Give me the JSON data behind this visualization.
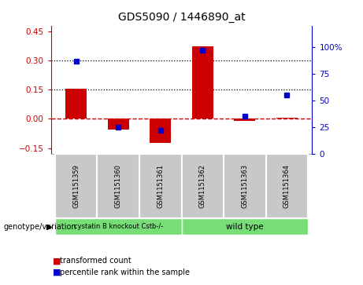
{
  "title": "GDS5090 / 1446890_at",
  "samples": [
    "GSM1151359",
    "GSM1151360",
    "GSM1151361",
    "GSM1151362",
    "GSM1151363",
    "GSM1151364"
  ],
  "bar_values": [
    0.155,
    -0.055,
    -0.125,
    0.375,
    -0.01,
    0.005
  ],
  "percentile_values": [
    87,
    25,
    22,
    97,
    35,
    55
  ],
  "ylim_left": [
    -0.18,
    0.48
  ],
  "ylim_right": [
    0,
    120
  ],
  "yticks_left": [
    -0.15,
    0.0,
    0.15,
    0.3,
    0.45
  ],
  "yticks_right": [
    0,
    25,
    50,
    75,
    100
  ],
  "hlines": [
    0.15,
    0.3
  ],
  "bar_color": "#cc0000",
  "dot_color": "#0000cc",
  "dashed_color": "#cc0000",
  "group1_label": "cystatin B knockout Cstb-/-",
  "group2_label": "wild type",
  "group_color": "#77dd77",
  "sample_bg_color": "#c8c8c8",
  "legend_red": "transformed count",
  "legend_blue": "percentile rank within the sample",
  "genotype_label": "genotype/variation",
  "bar_width": 0.5
}
